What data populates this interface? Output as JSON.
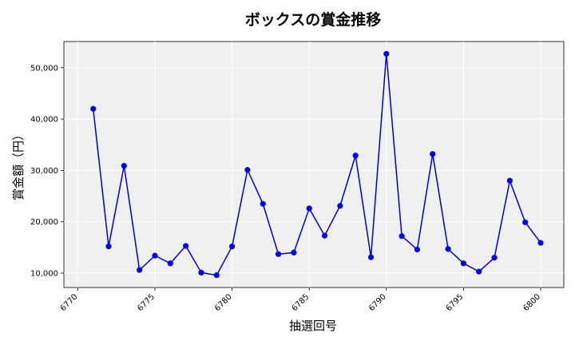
{
  "chart_data": {
    "type": "line",
    "title": "ボックスの賞金推移",
    "xlabel": "抽選回号",
    "ylabel": "賞金額（円）",
    "xlim": [
      6769.1,
      6801.5
    ],
    "ylim": [
      7200,
      55100
    ],
    "xticks": [
      6770,
      6775,
      6780,
      6785,
      6790,
      6795,
      6800
    ],
    "xtick_labels": [
      "6770",
      "6775",
      "6780",
      "6785",
      "6790",
      "6795",
      "6800"
    ],
    "yticks": [
      10000,
      20000,
      30000,
      40000,
      50000
    ],
    "ytick_labels": [
      "10,000",
      "20,000",
      "30,000",
      "40,000",
      "50,000"
    ],
    "grid": true,
    "line_color": "#0000cc",
    "marker_color": "#0000ee",
    "plot_background": "#f0f0f0",
    "series": [
      {
        "x": [
          6771,
          6772,
          6773,
          6774,
          6775,
          6776,
          6777,
          6778,
          6779,
          6780,
          6781,
          6782,
          6783,
          6784,
          6785,
          6786,
          6787,
          6788,
          6789,
          6790,
          6791,
          6792,
          6793,
          6794,
          6795,
          6796,
          6797,
          6798,
          6799,
          6800
        ],
        "values": [
          42000,
          15200,
          30900,
          10600,
          13400,
          11900,
          15300,
          10100,
          9600,
          15200,
          30100,
          23500,
          13700,
          14000,
          22600,
          17300,
          23100,
          32900,
          13100,
          52700,
          17200,
          14600,
          33200,
          14700,
          11900,
          10300,
          13000,
          28000,
          19900,
          15900
        ]
      }
    ]
  }
}
